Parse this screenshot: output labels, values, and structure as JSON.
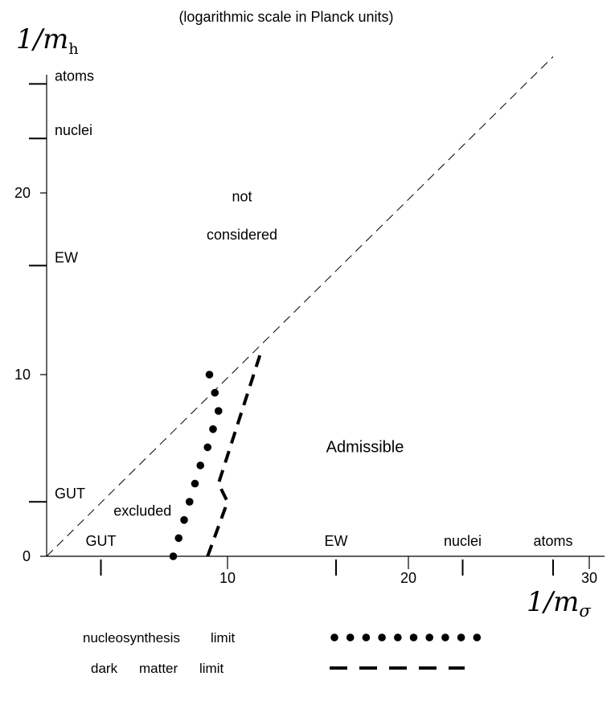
{
  "chart_data": {
    "type": "line",
    "title": "(logarithmic scale in Planck units)",
    "xlabel": {
      "main": "1/m",
      "sub": "σ"
    },
    "ylabel": {
      "main": "1/m",
      "sub": "h"
    },
    "xlim": [
      0,
      30
    ],
    "ylim": [
      0,
      28
    ],
    "x_ticks": [
      "10",
      "20",
      "30"
    ],
    "y_ticks": [
      "0",
      "10",
      "20"
    ],
    "x_scale_marks": [
      {
        "label": "GUT",
        "value": 3
      },
      {
        "label": "EW",
        "value": 16
      },
      {
        "label": "nuclei",
        "value": 23
      },
      {
        "label": "atoms",
        "value": 28
      }
    ],
    "y_scale_marks": [
      {
        "label": "GUT",
        "value": 3
      },
      {
        "label": "EW",
        "value": 16
      },
      {
        "label": "nuclei",
        "value": 23
      },
      {
        "label": "atoms",
        "value": 26
      }
    ],
    "region_labels": [
      {
        "text": "not",
        "x": 10.8,
        "y": 19.8
      },
      {
        "text": "considered",
        "x": 10.8,
        "y": 17.7
      },
      {
        "text": "Admissible",
        "x": 17.6,
        "y": 6.0
      },
      {
        "text": "excluded",
        "x": 5.3,
        "y": 2.5
      }
    ],
    "diagonal": {
      "from": [
        0,
        0
      ],
      "to": [
        28,
        27.5
      ],
      "style": "thin-dashed"
    },
    "series": [
      {
        "name": "nucleosynthesis limit",
        "style": "dotted",
        "x": [
          7.0,
          7.3,
          7.6,
          7.9,
          8.2,
          8.5,
          8.9,
          9.2,
          9.5,
          9.3,
          9.0
        ],
        "y": [
          0.0,
          1.0,
          2.0,
          3.0,
          4.0,
          5.0,
          6.0,
          7.0,
          8.0,
          9.0,
          10.0
        ]
      },
      {
        "name": "dark matter limit",
        "style": "dashed",
        "x": [
          8.9,
          10.0,
          9.5,
          11.9
        ],
        "y": [
          0.0,
          3.0,
          4.0,
          11.4
        ]
      }
    ],
    "legend": {
      "position": "bottom"
    }
  }
}
